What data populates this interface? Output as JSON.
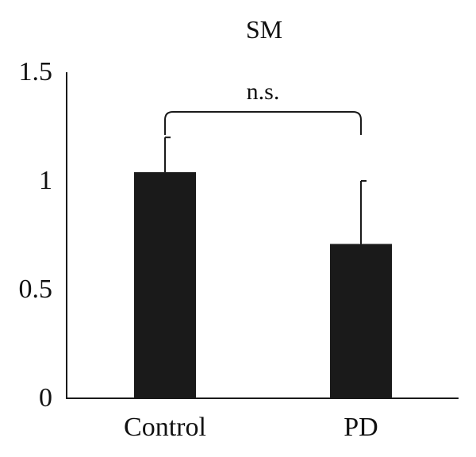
{
  "chart_data": {
    "type": "bar",
    "title": "SM",
    "xlabel": "",
    "ylabel": "",
    "categories": [
      "Control",
      "PD"
    ],
    "values": [
      1.04,
      0.71
    ],
    "error_upper": [
      1.2,
      1.0
    ],
    "ylim": [
      0,
      1.5
    ],
    "yticks": [
      {
        "value": 0,
        "label": "0"
      },
      {
        "value": 0.5,
        "label": "0.5"
      },
      {
        "value": 1,
        "label": "1"
      },
      {
        "value": 1.5,
        "label": "1.5"
      }
    ],
    "significance": {
      "label": "n.s.",
      "between": [
        "Control",
        "PD"
      ]
    },
    "grid": false,
    "legend": "none",
    "colors": {
      "bar": "#1a1a1a",
      "axis": "#1a1a1a",
      "text": "#111111"
    }
  }
}
